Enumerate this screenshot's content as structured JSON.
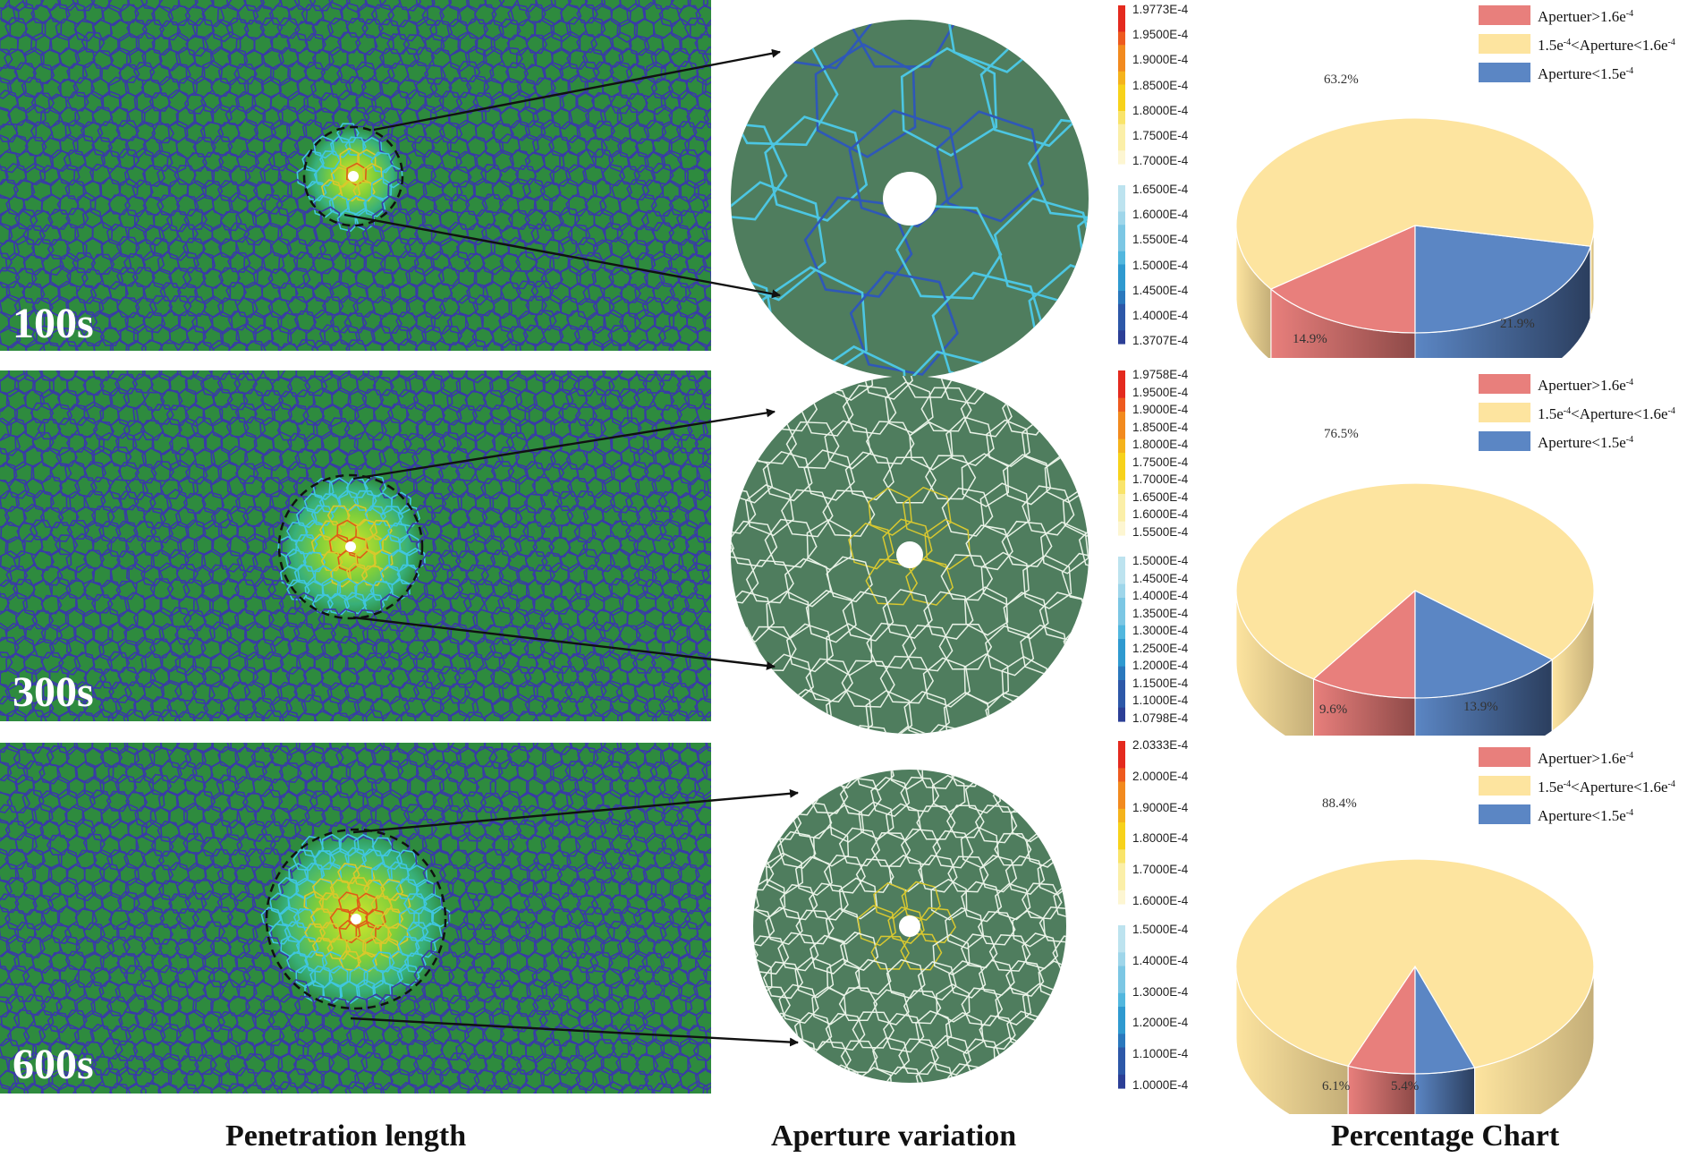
{
  "rows": [
    {
      "time_label": "100s",
      "colorbar_ticks": [
        "1.9773E-4",
        "1.9500E-4",
        "1.9000E-4",
        "1.8500E-4",
        "1.8000E-4",
        "1.7500E-4",
        "1.7000E-4",
        "1.6500E-4",
        "1.6000E-4",
        "1.5500E-4",
        "1.5000E-4",
        "1.4500E-4",
        "1.4000E-4",
        "1.3707E-4"
      ],
      "legend": [
        {
          "pre": "Apertuer>1.6e",
          "sup": "-4",
          "mid": "",
          "sup2": "",
          "color": "#e87f7c"
        },
        {
          "pre": "1.5e",
          "sup": "-4",
          "mid": "<Aperture<1.6e",
          "sup2": "-4",
          "color": "#fde49f"
        },
        {
          "pre": "Aperture<1.5e",
          "sup": "-4",
          "mid": "",
          "sup2": "",
          "color": "#5b86c4"
        }
      ],
      "pie_labels": [
        "63.2%",
        "14.9%",
        "21.9%"
      ]
    },
    {
      "time_label": "300s",
      "colorbar_ticks": [
        "1.9758E-4",
        "1.9500E-4",
        "1.9000E-4",
        "1.8500E-4",
        "1.8000E-4",
        "1.7500E-4",
        "1.7000E-4",
        "1.6500E-4",
        "1.6000E-4",
        "1.5500E-4",
        "1.5000E-4",
        "1.4500E-4",
        "1.4000E-4",
        "1.3500E-4",
        "1.3000E-4",
        "1.2500E-4",
        "1.2000E-4",
        "1.1500E-4",
        "1.1000E-4",
        "1.0798E-4"
      ],
      "legend": [
        {
          "pre": "Apertuer>1.6e",
          "sup": "-4",
          "mid": "",
          "sup2": "",
          "color": "#e87f7c"
        },
        {
          "pre": "1.5e",
          "sup": "-4",
          "mid": "<Aperture<1.6e",
          "sup2": "-4",
          "color": "#fde49f"
        },
        {
          "pre": "Aperture<1.5e",
          "sup": "-4",
          "mid": "",
          "sup2": "",
          "color": "#5b86c4"
        }
      ],
      "pie_labels": [
        "76.5%",
        "9.6%",
        "13.9%"
      ]
    },
    {
      "time_label": "600s",
      "colorbar_ticks": [
        "2.0333E-4",
        "2.0000E-4",
        "1.9000E-4",
        "1.8000E-4",
        "1.7000E-4",
        "1.6000E-4",
        "1.5000E-4",
        "1.4000E-4",
        "1.3000E-4",
        "1.2000E-4",
        "1.1000E-4",
        "1.0000E-4"
      ],
      "legend": [
        {
          "pre": "Apertuer>1.6e",
          "sup": "-4",
          "mid": "",
          "sup2": "",
          "color": "#e87f7c"
        },
        {
          "pre": "1.5e",
          "sup": "-4",
          "mid": "<Aperture<1.6e",
          "sup2": "-4",
          "color": "#fde49f"
        },
        {
          "pre": "Aperture<1.5e",
          "sup": "-4",
          "mid": "",
          "sup2": "",
          "color": "#5b86c4"
        }
      ],
      "pie_labels": [
        "88.4%",
        "6.1%",
        "5.4%"
      ]
    }
  ],
  "column_titles": {
    "penetration": "Penetration length",
    "aperture": "Aperture variation",
    "percentage": "Percentage Chart"
  },
  "colors": {
    "mesh_fill": "#2e8b3e",
    "mesh_edge": "#3a3aa8",
    "zoom_fill": "#4f7d5e",
    "pie_red": "#e87f7c",
    "pie_yellow": "#fde49f",
    "pie_blue": "#5b86c4"
  },
  "chart_data": [
    {
      "type": "pie",
      "categories": [
        "Apertuer>1.6e-4",
        "1.5e-4<Aperture<1.6e-4",
        "Aperture<1.5e-4"
      ],
      "values": [
        14.9,
        63.2,
        21.9
      ],
      "legend_position": "top-right"
    },
    {
      "type": "pie",
      "categories": [
        "Apertuer>1.6e-4",
        "1.5e-4<Aperture<1.6e-4",
        "Aperture<1.5e-4"
      ],
      "values": [
        9.6,
        76.5,
        13.9
      ],
      "legend_position": "top-right"
    },
    {
      "type": "pie",
      "categories": [
        "Apertuer>1.6e-4",
        "1.5e-4<Aperture<1.6e-4",
        "Aperture<1.5e-4"
      ],
      "values": [
        6.1,
        88.4,
        5.4
      ],
      "legend_position": "top-right"
    }
  ]
}
